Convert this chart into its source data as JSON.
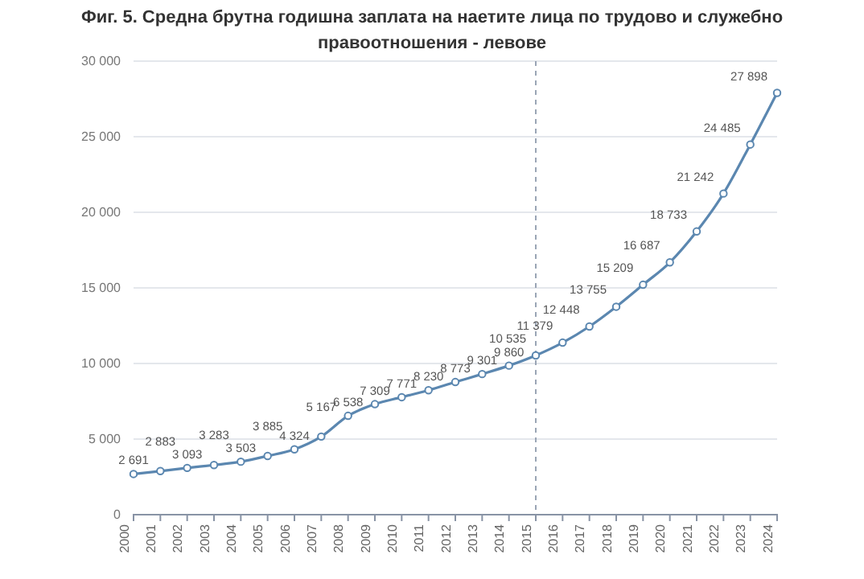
{
  "chart_data": {
    "type": "line",
    "title": "Фиг. 5. Средна брутна годишна заплата на наетите лица по трудово и служебно правоотношения - левове",
    "categories": [
      "2000",
      "2001",
      "2002",
      "2003",
      "2004",
      "2005",
      "2006",
      "2007",
      "2008",
      "2009",
      "2010",
      "2011",
      "2012",
      "2013",
      "2014",
      "2015",
      "2016",
      "2017",
      "2018",
      "2019",
      "2020",
      "2021",
      "2022",
      "2023",
      "2024"
    ],
    "series": [
      {
        "color": "#5b87b0",
        "values": [
          2691,
          2883,
          3093,
          3283,
          3503,
          3885,
          4324,
          5167,
          6538,
          7309,
          7771,
          8230,
          8773,
          9301,
          9860,
          10535,
          11379,
          12448,
          13755,
          15209,
          16687,
          18733,
          21242,
          24485,
          27898
        ]
      }
    ],
    "ylim": [
      0,
      30000
    ],
    "yticks": [
      {
        "value": 0,
        "label": "0"
      },
      {
        "value": 5000,
        "label": "5 000"
      },
      {
        "value": 10000,
        "label": "10 000"
      },
      {
        "value": 15000,
        "label": "15 000"
      },
      {
        "value": 20000,
        "label": "20 000"
      },
      {
        "value": 25000,
        "label": "25 000"
      },
      {
        "value": 30000,
        "label": "30 000"
      }
    ],
    "ref_lines": [
      {
        "axis": "x",
        "value": "2015",
        "color": "#9aa5b5",
        "line_style": "dashed"
      }
    ],
    "grid": "y",
    "marker": "circle",
    "line_style": "solid",
    "data_labels": true
  }
}
